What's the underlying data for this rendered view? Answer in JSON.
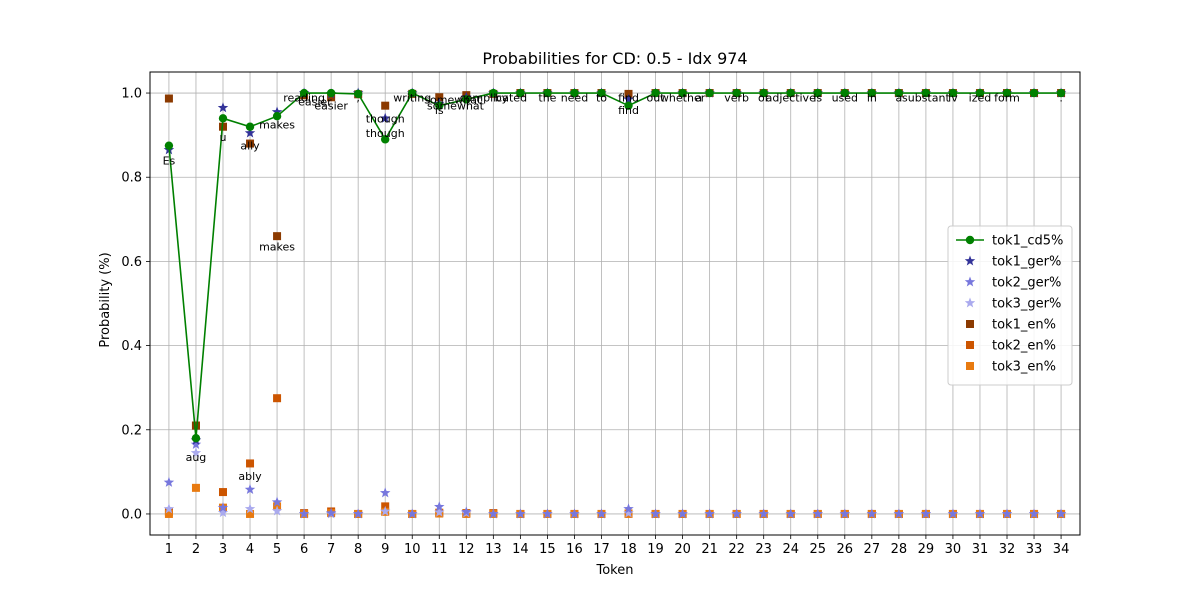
{
  "chart_data": {
    "type": "line",
    "title": "Probabilities for CD: 0.5 - Idx 974",
    "xlabel": "Token",
    "ylabel": "Probability (%)",
    "x": [
      1,
      2,
      3,
      4,
      5,
      6,
      7,
      8,
      9,
      10,
      11,
      12,
      13,
      14,
      15,
      16,
      17,
      18,
      19,
      20,
      21,
      22,
      23,
      24,
      25,
      26,
      27,
      28,
      29,
      30,
      31,
      32,
      33,
      34
    ],
    "xlim": [
      0.3,
      34.7
    ],
    "ylim": [
      -0.05,
      1.05
    ],
    "yticks": [
      0.0,
      0.2,
      0.4,
      0.6,
      0.8,
      1.0
    ],
    "grid": true,
    "legend_position": "center-right",
    "series": [
      {
        "name": "tok1_cd5%",
        "marker": "circle",
        "line": true,
        "color": "#008000",
        "values": [
          0.875,
          0.18,
          0.94,
          0.92,
          0.945,
          1.0,
          1.0,
          0.998,
          0.89,
          1.0,
          0.97,
          0.985,
          1.0,
          1.0,
          1.0,
          1.0,
          1.0,
          0.97,
          1.0,
          1.0,
          1.0,
          1.0,
          1.0,
          1.0,
          1.0,
          1.0,
          1.0,
          1.0,
          1.0,
          1.0,
          1.0,
          1.0,
          1.0,
          1.0
        ]
      },
      {
        "name": "tok1_ger%",
        "marker": "star",
        "line": false,
        "color": "#333399",
        "values": [
          0.865,
          0.175,
          0.965,
          0.905,
          0.955,
          1.0,
          0.998,
          1.0,
          0.94,
          1.0,
          0.975,
          0.99,
          1.0,
          1.0,
          1.0,
          1.0,
          1.0,
          0.985,
          1.0,
          1.0,
          1.0,
          1.0,
          1.0,
          1.0,
          1.0,
          1.0,
          1.0,
          1.0,
          1.0,
          1.0,
          1.0,
          1.0,
          1.0,
          1.0
        ]
      },
      {
        "name": "tok2_ger%",
        "marker": "star",
        "line": false,
        "color": "#7777dd",
        "values": [
          0.075,
          0.165,
          0.015,
          0.058,
          0.028,
          0.0,
          0.002,
          0.0,
          0.05,
          0.0,
          0.017,
          0.005,
          0.0,
          0.0,
          0.0,
          0.0,
          0.0,
          0.012,
          0.0,
          0.0,
          0.0,
          0.0,
          0.0,
          0.0,
          0.0,
          0.0,
          0.0,
          0.0,
          0.0,
          0.0,
          0.0,
          0.0,
          0.0,
          0.0
        ]
      },
      {
        "name": "tok3_ger%",
        "marker": "star",
        "line": false,
        "color": "#aaaaee",
        "values": [
          0.012,
          0.145,
          0.003,
          0.012,
          0.007,
          0.0,
          0.0,
          0.0,
          0.006,
          0.0,
          0.004,
          0.002,
          0.0,
          0.0,
          0.0,
          0.0,
          0.0,
          0.002,
          0.0,
          0.0,
          0.0,
          0.0,
          0.0,
          0.0,
          0.0,
          0.0,
          0.0,
          0.0,
          0.0,
          0.0,
          0.0,
          0.0,
          0.0,
          0.0
        ]
      },
      {
        "name": "tok1_en%",
        "marker": "square",
        "line": false,
        "color": "#8b3a00",
        "values": [
          0.987,
          0.21,
          0.92,
          0.88,
          0.66,
          0.995,
          0.99,
          0.997,
          0.97,
          0.998,
          0.99,
          0.995,
          0.998,
          1.0,
          1.0,
          1.0,
          1.0,
          0.998,
          1.0,
          1.0,
          1.0,
          1.0,
          1.0,
          1.0,
          1.0,
          1.0,
          1.0,
          1.0,
          1.0,
          1.0,
          1.0,
          1.0,
          1.0,
          1.0
        ]
      },
      {
        "name": "tok2_en%",
        "marker": "square",
        "line": false,
        "color": "#cc5500",
        "values": [
          0.005,
          0.21,
          0.052,
          0.12,
          0.275,
          0.002,
          0.006,
          0.0,
          0.018,
          0.0,
          0.003,
          0.002,
          0.002,
          0.0,
          0.0,
          0.0,
          0.0,
          0.001,
          0.0,
          0.0,
          0.0,
          0.0,
          0.0,
          0.0,
          0.0,
          0.0,
          0.0,
          0.0,
          0.0,
          0.0,
          0.0,
          0.0,
          0.0,
          0.0
        ]
      },
      {
        "name": "tok3_en%",
        "marker": "square",
        "line": false,
        "color": "#e87a10",
        "values": [
          0.0,
          0.062,
          0.015,
          0.0,
          0.018,
          0.0,
          0.002,
          0.0,
          0.005,
          0.0,
          0.001,
          0.0,
          0.0,
          0.0,
          0.0,
          0.0,
          0.0,
          0.0,
          0.0,
          0.0,
          0.0,
          0.0,
          0.0,
          0.0,
          0.0,
          0.0,
          0.0,
          0.0,
          0.0,
          0.0,
          0.0,
          0.0,
          0.0,
          0.0
        ]
      }
    ],
    "annotations": [
      {
        "x": 1,
        "y": 0.84,
        "text": "Es"
      },
      {
        "x": 2,
        "y": 0.135,
        "text": "aug"
      },
      {
        "x": 3,
        "y": 0.895,
        "text": "u"
      },
      {
        "x": 4,
        "y": 0.875,
        "text": "ally"
      },
      {
        "x": 4,
        "y": 0.09,
        "text": "ably"
      },
      {
        "x": 5,
        "y": 0.925,
        "text": "makes"
      },
      {
        "x": 5,
        "y": 0.635,
        "text": "makes"
      },
      {
        "x": 6,
        "y": 0.99,
        "text": "reading"
      },
      {
        "x": 6.4,
        "y": 0.98,
        "text": "easier"
      },
      {
        "x": 7,
        "y": 0.97,
        "text": "easier"
      },
      {
        "x": 8,
        "y": 0.99,
        "text": ","
      },
      {
        "x": 9,
        "y": 0.94,
        "text": "though"
      },
      {
        "x": 9,
        "y": 0.905,
        "text": "though"
      },
      {
        "x": 10,
        "y": 0.99,
        "text": "writing"
      },
      {
        "x": 11,
        "y": 0.96,
        "text": "is"
      },
      {
        "x": 11.5,
        "y": 0.985,
        "text": "somewhat"
      },
      {
        "x": 11.6,
        "y": 0.97,
        "text": "somewhat"
      },
      {
        "x": 13,
        "y": 0.99,
        "text": "complicated"
      },
      {
        "x": 13.3,
        "y": 0.99,
        "text": "by"
      },
      {
        "x": 15,
        "y": 0.99,
        "text": "the"
      },
      {
        "x": 16,
        "y": 0.99,
        "text": "need"
      },
      {
        "x": 17,
        "y": 0.99,
        "text": "to"
      },
      {
        "x": 18,
        "y": 0.99,
        "text": "find"
      },
      {
        "x": 18,
        "y": 0.96,
        "text": "find"
      },
      {
        "x": 19,
        "y": 0.99,
        "text": "out"
      },
      {
        "x": 20,
        "y": 0.99,
        "text": "whether"
      },
      {
        "x": 20.6,
        "y": 0.99,
        "text": "a"
      },
      {
        "x": 22,
        "y": 0.99,
        "text": "verb"
      },
      {
        "x": 23,
        "y": 0.99,
        "text": "or"
      },
      {
        "x": 24,
        "y": 0.99,
        "text": "adjective"
      },
      {
        "x": 25,
        "y": 0.99,
        "text": "is"
      },
      {
        "x": 26,
        "y": 0.99,
        "text": "used"
      },
      {
        "x": 27,
        "y": 0.99,
        "text": "in"
      },
      {
        "x": 28,
        "y": 0.99,
        "text": "a"
      },
      {
        "x": 29,
        "y": 0.99,
        "text": "substant"
      },
      {
        "x": 30,
        "y": 0.99,
        "text": "iv"
      },
      {
        "x": 31,
        "y": 0.99,
        "text": "ized"
      },
      {
        "x": 32,
        "y": 0.99,
        "text": "form"
      },
      {
        "x": 34,
        "y": 0.99,
        "text": "."
      }
    ]
  }
}
